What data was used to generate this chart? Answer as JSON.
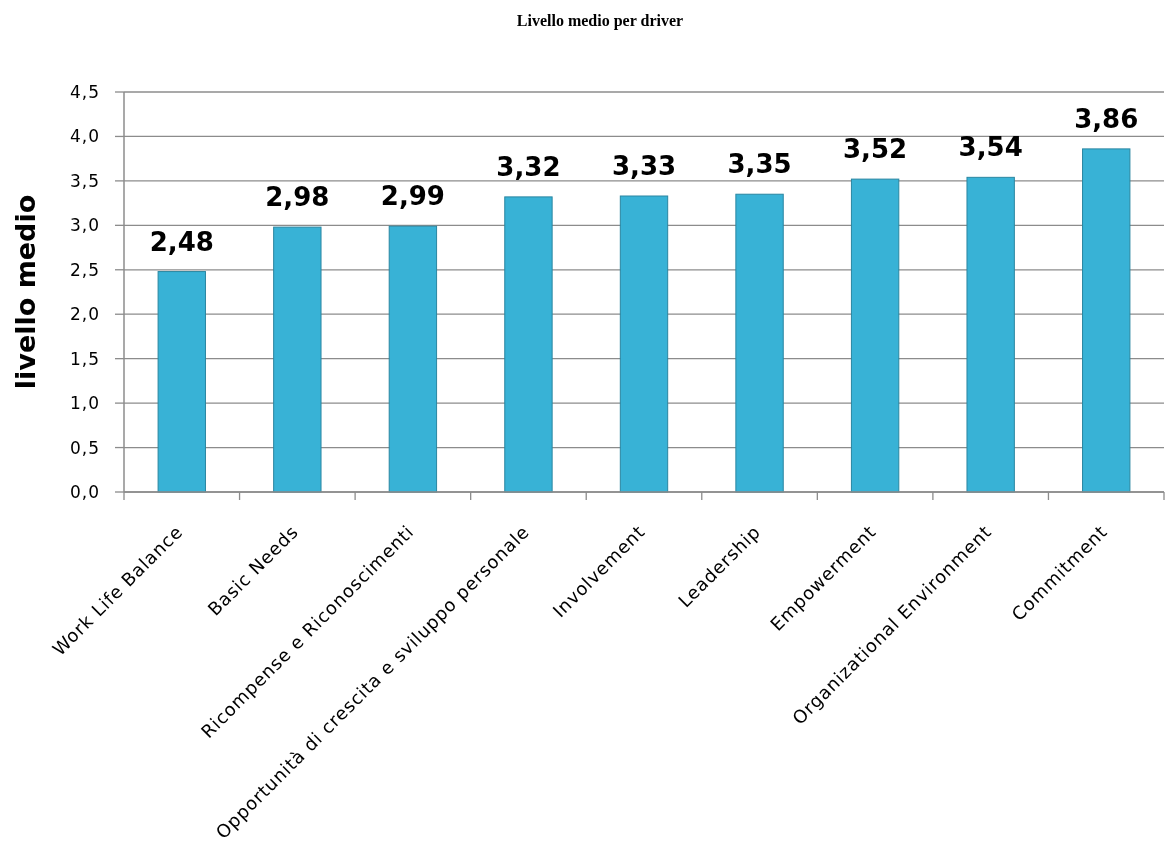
{
  "chart_data": {
    "type": "bar",
    "title": "Livello medio per driver",
    "ylabel": "livello medio",
    "categories": [
      "Work Life Balance",
      "Basic Needs",
      "Ricompense e Riconoscimenti",
      "Opportunità di crescita e sviluppo personale",
      "Involvement",
      "Leadership",
      "Empowerment",
      "Organizational Environment",
      "Commitment"
    ],
    "values": [
      2.48,
      2.98,
      2.99,
      3.32,
      3.33,
      3.35,
      3.52,
      3.54,
      3.86
    ],
    "value_labels": [
      "2,48",
      "2,98",
      "2,99",
      "3,32",
      "3,33",
      "3,35",
      "3,52",
      "3,54",
      "3,86"
    ],
    "color": "#38b2d6",
    "ylim": [
      0,
      4.5
    ],
    "yticks": [
      {
        "value": 0,
        "label": "0,0"
      },
      {
        "value": 0.5,
        "label": "0,5"
      },
      {
        "value": 1,
        "label": "1,0"
      },
      {
        "value": 1.5,
        "label": "1,5"
      },
      {
        "value": 2,
        "label": "2,0"
      },
      {
        "value": 2.5,
        "label": "2,5"
      },
      {
        "value": 3,
        "label": "3,0"
      },
      {
        "value": 3.5,
        "label": "3,5"
      },
      {
        "value": 4,
        "label": "4,0"
      },
      {
        "value": 4.5,
        "label": "4,5"
      }
    ],
    "grid": "y"
  }
}
